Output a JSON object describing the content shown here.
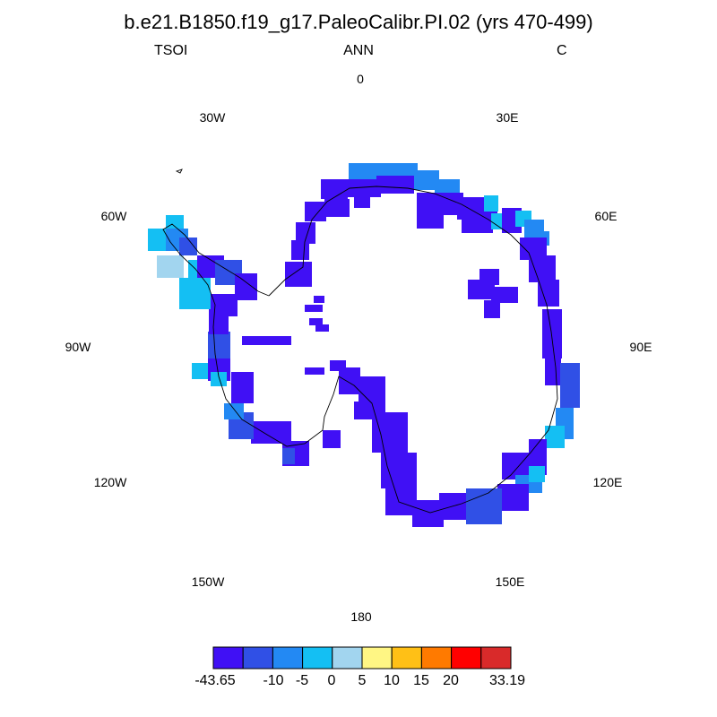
{
  "title": "b.e21.B1850.f19_g17.PaleoCalibr.PI.02 (yrs 470-499)",
  "left_string": "TSOI",
  "center_string": "ANN",
  "right_string": "C",
  "longitude_labels": [
    "0",
    "30E",
    "60E",
    "90E",
    "120E",
    "150E",
    "180",
    "150W",
    "120W",
    "90W",
    "60W",
    "30W"
  ],
  "colorbar": {
    "colors": [
      "#4010f5",
      "#3050e6",
      "#2389f3",
      "#14bff3",
      "#a2d5ef",
      "#fff684",
      "#ffc016",
      "#ff7a00",
      "#ff0000",
      "#d92a2a"
    ],
    "labels": [
      "-43.65",
      "-10",
      "-5",
      "0",
      "5",
      "10",
      "15",
      "20",
      "33.19"
    ]
  },
  "field_colors": {
    "dark": "#4010f5",
    "medium": "#3050e6",
    "light": "#2389f3",
    "cyan": "#14bff3",
    "pale": "#a2d5ef"
  },
  "coastline_color": "#000000"
}
